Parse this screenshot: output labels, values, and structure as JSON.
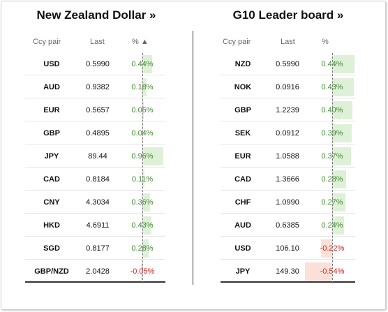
{
  "left": {
    "title": "New Zealand Dollar »",
    "headers": {
      "ccy": "Ccy pair",
      "last": "Last",
      "pct": "% ▲"
    },
    "rows": [
      {
        "ccy": "USD",
        "last": "0.5990",
        "pct": "0.44%",
        "change": 0.44
      },
      {
        "ccy": "AUD",
        "last": "0.9382",
        "pct": "0.18%",
        "change": 0.18
      },
      {
        "ccy": "EUR",
        "last": "0.5657",
        "pct": "0.05%",
        "change": 0.05
      },
      {
        "ccy": "GBP",
        "last": "0.4895",
        "pct": "0.04%",
        "change": 0.04
      },
      {
        "ccy": "JPY",
        "last": "89.44",
        "pct": "0.96%",
        "change": 0.96
      },
      {
        "ccy": "CAD",
        "last": "0.8184",
        "pct": "0.11%",
        "change": 0.11
      },
      {
        "ccy": "CNY",
        "last": "4.3034",
        "pct": "0.36%",
        "change": 0.36
      },
      {
        "ccy": "HKD",
        "last": "4.6911",
        "pct": "0.43%",
        "change": 0.43
      },
      {
        "ccy": "SGD",
        "last": "0.8177",
        "pct": "0.28%",
        "change": 0.28
      },
      {
        "ccy": "GBP/NZD",
        "last": "2.0428",
        "pct": "-0.05%",
        "change": -0.05
      }
    ]
  },
  "right": {
    "title": "G10 Leader board »",
    "headers": {
      "ccy": "Ccy pair",
      "last": "Last",
      "pct": "%"
    },
    "rows": [
      {
        "ccy": "NZD",
        "last": "0.5990",
        "pct": "0.44%",
        "change": 0.44
      },
      {
        "ccy": "NOK",
        "last": "0.0916",
        "pct": "0.43%",
        "change": 0.43
      },
      {
        "ccy": "GBP",
        "last": "1.2239",
        "pct": "0.40%",
        "change": 0.4
      },
      {
        "ccy": "SEK",
        "last": "0.0912",
        "pct": "0.39%",
        "change": 0.39
      },
      {
        "ccy": "EUR",
        "last": "1.0588",
        "pct": "0.37%",
        "change": 0.37
      },
      {
        "ccy": "CAD",
        "last": "1.3666",
        "pct": "0.28%",
        "change": 0.28
      },
      {
        "ccy": "CHF",
        "last": "1.0990",
        "pct": "0.27%",
        "change": 0.27
      },
      {
        "ccy": "AUD",
        "last": "0.6385",
        "pct": "0.24%",
        "change": 0.24
      },
      {
        "ccy": "USD",
        "last": "106.10",
        "pct": "-0.22%",
        "change": -0.22
      },
      {
        "ccy": "JPY",
        "last": "149.30",
        "pct": "-0.54%",
        "change": -0.54
      }
    ]
  },
  "colors": {
    "positive_text": "#3a8a2a",
    "negative_text": "#d42020",
    "positive_bar": "#dff0d8",
    "negative_bar": "#fbe0d8"
  }
}
